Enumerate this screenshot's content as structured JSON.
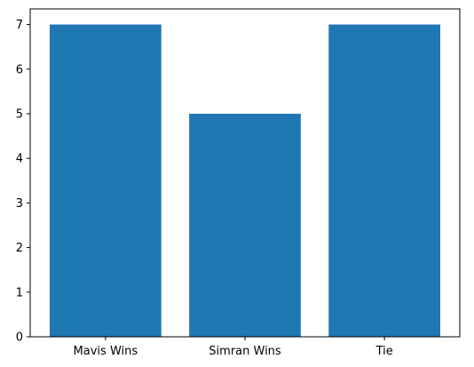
{
  "chart_data": {
    "type": "bar",
    "categories": [
      "Mavis Wins",
      "Simran Wins",
      "Tie"
    ],
    "values": [
      7,
      5,
      7
    ],
    "title": "",
    "xlabel": "",
    "ylabel": "",
    "ylim": [
      0,
      7.35
    ],
    "yticks": [
      0,
      1,
      2,
      3,
      4,
      5,
      6,
      7
    ],
    "grid": false,
    "bar_color": "#1f77b4"
  }
}
